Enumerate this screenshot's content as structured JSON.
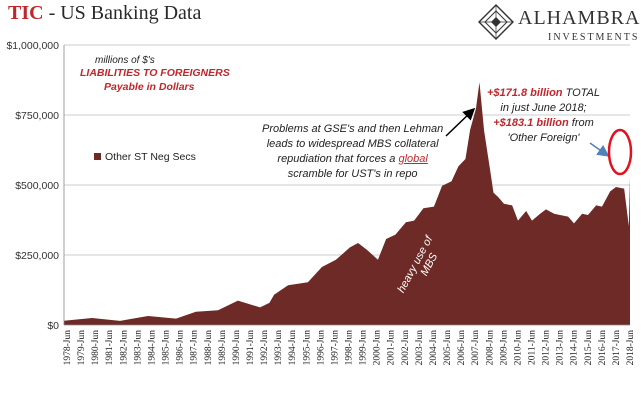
{
  "header": {
    "title_part1": "TIC",
    "title_part2": " - US Banking Data",
    "logo_name": "ALHAMBRA",
    "logo_sub": "INVESTMENTS"
  },
  "units_note": "millions of $'s",
  "subtitle_line1": "LIABILITIES TO FOREIGNERS",
  "subtitle_line2": "Payable in Dollars",
  "annotations": {
    "gse_line1": "Problems at GSE's and then Lehman",
    "gse_line2": "leads to widespread MBS collateral",
    "gse_line3a": "repudiation that forces a ",
    "gse_line3b": "global",
    "gse_line4": "scramble for UST's in repo",
    "total_amount": "+$171.8 billion",
    "total_text": " TOTAL",
    "total_line2": "in just June 2018;",
    "foreign_amount": "+$183.1 billion",
    "foreign_text": " from",
    "foreign_line2": "'Other Foreign'",
    "mbs_line1": "heavy use of",
    "mbs_line2": "MBS"
  },
  "colors": {
    "area": "#6e2a26",
    "accent_red": "#c0272d",
    "arrow_blue": "#4f81bd",
    "grid": "#bdbdbd"
  },
  "chart_data": {
    "type": "area",
    "title": "TIC - US Banking Data",
    "ylim": [
      0,
      1000000
    ],
    "yticks": [
      0,
      250000,
      500000,
      750000,
      1000000
    ],
    "ytick_labels": [
      "$0",
      "$250,000",
      "$500,000",
      "$750,000",
      "$1,000,000"
    ],
    "xlim": [
      "1978-01",
      "2018-06"
    ],
    "xtick_labels": [
      "1978-Jun",
      "1979-Jun",
      "1980-Jun",
      "1981-Jun",
      "1982-Jun",
      "1983-Jun",
      "1984-Jun",
      "1985-Jun",
      "1986-Jun",
      "1987-Jun",
      "1988-Jun",
      "1989-Jun",
      "1990-Jun",
      "1991-Jun",
      "1992-Jun",
      "1993-Jun",
      "1994-Jun",
      "1995-Jun",
      "1996-Jun",
      "1997-Jun",
      "1998-Jun",
      "1999-Jun",
      "2000-Jun",
      "2001-Jun",
      "2002-Jun",
      "2003-Jun",
      "2004-Jun",
      "2005-Jun",
      "2006-Jun",
      "2007-Jun",
      "2008-Jun",
      "2009-Jun",
      "2010-Jun",
      "2011-Jun",
      "2012-Jun",
      "2013-Jun",
      "2014-Jun",
      "2015-Jun",
      "2016-Jun",
      "2017-Jun",
      "2018-Jun"
    ],
    "grid": true,
    "legend_position": "left",
    "series": [
      {
        "name": "Other ST Neg Secs",
        "x": [
          "1978-01",
          "1980-01",
          "1982-01",
          "1984-01",
          "1986-01",
          "1987-06",
          "1989-01",
          "1990-06",
          "1992-01",
          "1992-09",
          "1993-01",
          "1994-01",
          "1995-06",
          "1996-06",
          "1997-06",
          "1998-06",
          "1999-01",
          "1999-09",
          "2000-06",
          "2001-01",
          "2001-09",
          "2002-06",
          "2003-01",
          "2003-09",
          "2004-06",
          "2005-01",
          "2005-09",
          "2006-03",
          "2006-09",
          "2007-01",
          "2007-06",
          "2007-09",
          "2008-01",
          "2008-06",
          "2008-09",
          "2009-01",
          "2009-06",
          "2010-01",
          "2010-06",
          "2011-01",
          "2011-06",
          "2012-01",
          "2012-06",
          "2013-01",
          "2013-06",
          "2014-01",
          "2014-06",
          "2015-01",
          "2015-06",
          "2016-01",
          "2016-06",
          "2017-01",
          "2017-06",
          "2018-01",
          "2018-05",
          "2018-06"
        ],
        "values": [
          15000,
          18000,
          22000,
          25000,
          30000,
          40000,
          60000,
          80000,
          70000,
          72000,
          115000,
          135000,
          160000,
          200000,
          240000,
          270000,
          300000,
          260000,
          240000,
          300000,
          330000,
          360000,
          380000,
          410000,
          430000,
          490000,
          520000,
          560000,
          600000,
          690000,
          780000,
          860000,
          700000,
          550000,
          480000,
          450000,
          440000,
          420000,
          380000,
          400000,
          380000,
          390000,
          420000,
          390000,
          400000,
          380000,
          370000,
          390000,
          400000,
          420000,
          430000,
          470000,
          500000,
          480000,
          360000,
          530000
        ]
      }
    ]
  }
}
